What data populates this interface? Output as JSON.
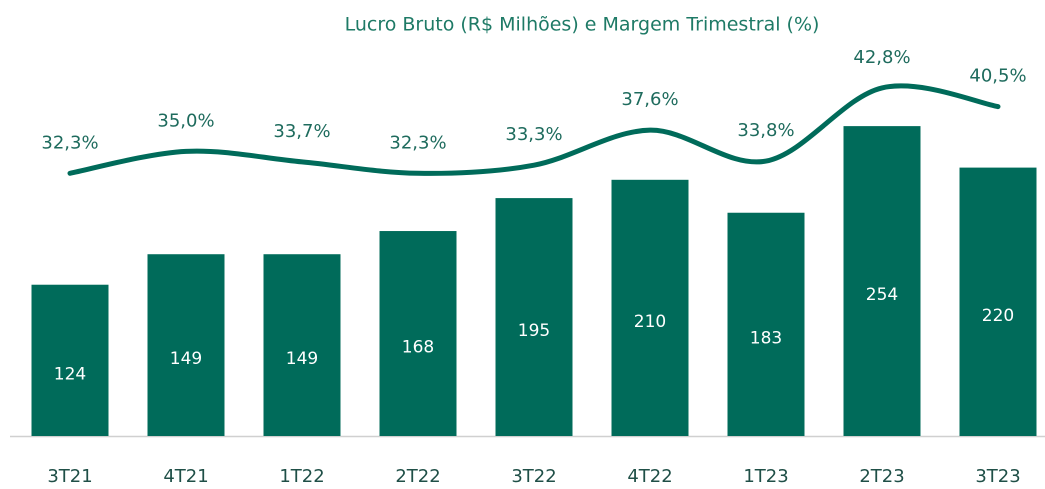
{
  "chart_data": {
    "type": "bar",
    "title": "Lucro Bruto (R$ Milhões) e Margem Trimestral (%)",
    "categories": [
      "3T21",
      "4T21",
      "1T22",
      "2T22",
      "3T22",
      "4T22",
      "1T23",
      "2T23",
      "3T23"
    ],
    "series": [
      {
        "type": "bar",
        "color": "#006b5a",
        "values": [
          124,
          149,
          149,
          168,
          195,
          210,
          183,
          254,
          220
        ]
      },
      {
        "type": "line",
        "axis": "y2",
        "color": "#006b5a",
        "values": [
          32.3,
          35.0,
          33.7,
          32.3,
          33.3,
          37.6,
          33.8,
          42.8,
          40.5
        ],
        "value_labels": [
          "32,3%",
          "35,0%",
          "33,7%",
          "32,3%",
          "33,3%",
          "37,6%",
          "33,8%",
          "42,8%",
          "40,5%"
        ]
      }
    ],
    "ylim": [
      0,
      300
    ],
    "y2lim": [
      0,
      45
    ]
  }
}
